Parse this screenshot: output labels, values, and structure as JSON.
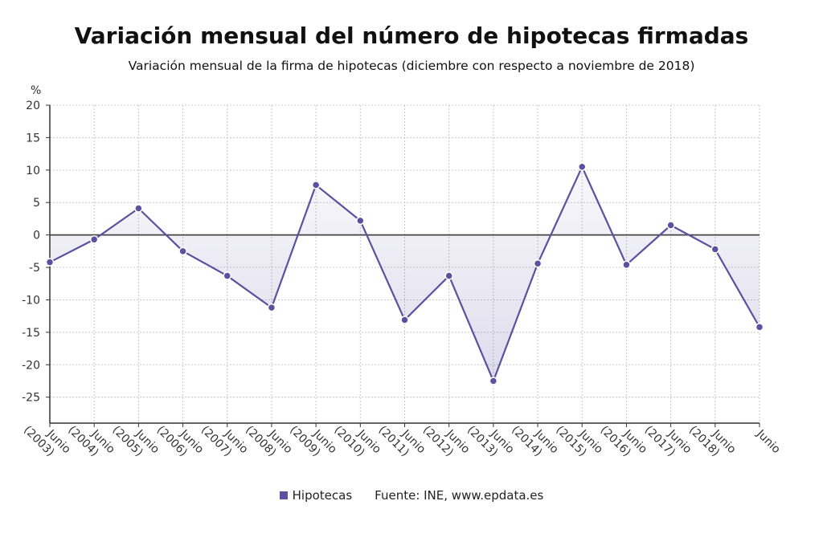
{
  "chart_data": {
    "type": "area",
    "title": "Variación mensual del número de hipotecas firmadas",
    "subtitle": "Variación mensual de la firma de hipotecas (diciembre con respecto a noviembre de 2018)",
    "ylabel": "%",
    "xlabel": "",
    "ylim": [
      -29,
      20
    ],
    "yticks": [
      20,
      15,
      10,
      5,
      0,
      -5,
      -10,
      -15,
      -20,
      -25
    ],
    "grid": true,
    "categories": [
      [
        "Junio",
        "(2003)"
      ],
      [
        "Junio",
        "(2004)"
      ],
      [
        "Junio",
        "(2005)"
      ],
      [
        "Junio",
        "(2006)"
      ],
      [
        "Junio",
        "(2007)"
      ],
      [
        "Junio",
        "(2008)"
      ],
      [
        "Junio",
        "(2009)"
      ],
      [
        "Junio",
        "(2010)"
      ],
      [
        "Junio",
        "(2011)"
      ],
      [
        "Junio",
        "(2012)"
      ],
      [
        "Junio",
        "(2013)"
      ],
      [
        "Junio",
        "(2014)"
      ],
      [
        "Junio",
        "(2015)"
      ],
      [
        "Junio",
        "(2016)"
      ],
      [
        "Junio",
        "(2017)"
      ],
      [
        "Junio",
        "(2018)"
      ],
      [
        "Junio",
        ""
      ]
    ],
    "series": [
      {
        "name": "Hipotecas",
        "color": "#5b519e",
        "values": [
          -4.2,
          -0.7,
          4.1,
          -2.5,
          -6.3,
          -11.2,
          7.7,
          2.2,
          -13.1,
          -6.3,
          -22.5,
          -4.4,
          10.5,
          -4.6,
          1.5,
          -2.2,
          -14.2
        ]
      }
    ],
    "legend_position": "bottom-center",
    "source": "Fuente: INE, www.epdata.es"
  }
}
